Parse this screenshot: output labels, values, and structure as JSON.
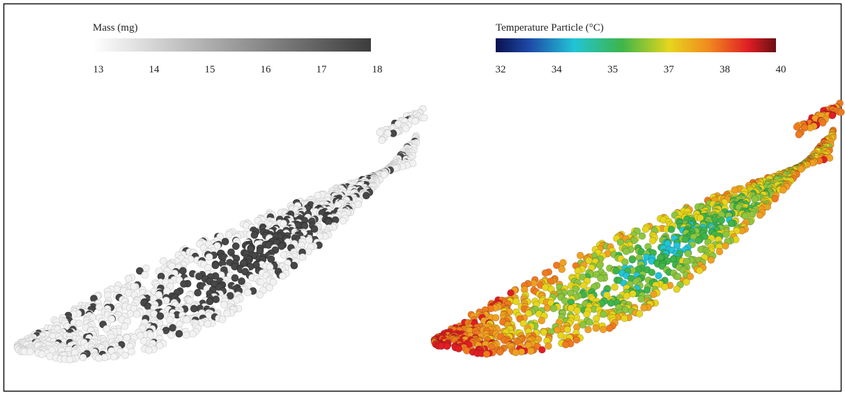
{
  "panels": [
    {
      "colorbar": {
        "title": "Mass (mg)",
        "ticks": [
          13,
          14,
          15,
          16,
          17,
          18
        ]
      }
    },
    {
      "colorbar": {
        "title": "Temperature Particle (°C)",
        "ticks": [
          32,
          34,
          35,
          37,
          38,
          40
        ]
      }
    }
  ]
}
